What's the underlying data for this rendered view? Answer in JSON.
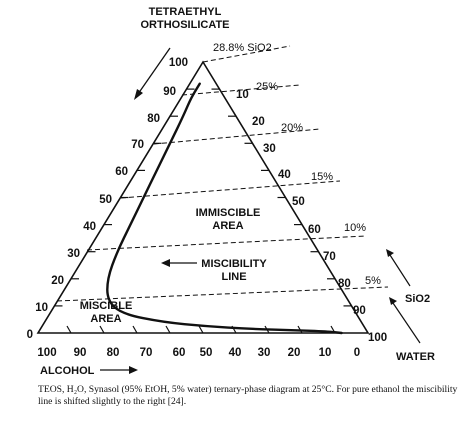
{
  "vertices": {
    "top": [
      "TETRAETHYL",
      "ORTHOSILICATE"
    ],
    "bottom_left": "ALCOHOL",
    "bottom_right": "WATER"
  },
  "axis_labels": {
    "left_edge": [
      "100",
      "90",
      "80",
      "70",
      "60",
      "50",
      "40",
      "30",
      "20",
      "10",
      "0"
    ],
    "right_edge": [
      "10",
      "20",
      "30",
      "40",
      "50",
      "60",
      "70",
      "80",
      "90",
      "100"
    ],
    "bottom_edge": [
      "100",
      "90",
      "80",
      "70",
      "60",
      "50",
      "40",
      "30",
      "20",
      "10",
      "0"
    ]
  },
  "sio2_lines": [
    "28.8% SiO2",
    "25%",
    "20%",
    "15%",
    "10%",
    "5%"
  ],
  "regions": {
    "immiscible": [
      "IMMISCIBLE",
      "AREA"
    ],
    "miscibility": [
      "MISCIBILITY",
      "LINE"
    ],
    "miscible": [
      "MISCIBLE",
      "AREA"
    ]
  },
  "sio2_arrow_label": "SiO2",
  "caption": "TEOS, H₂O, Synasol (95% EtOH, 5% water) ternary-phase diagram at 25°C. For pure ethanol the miscibility line is shifted slightly to the right [24].",
  "chart_data": {
    "type": "ternary",
    "components": [
      "Tetraethyl orthosilicate",
      "Alcohol",
      "Water"
    ],
    "temperature": "25°C",
    "sio2_wt_percent_lines": [
      28.8,
      25,
      20,
      15,
      10,
      5
    ],
    "miscibility_line": [
      {
        "teos": 92,
        "alcohol": 5,
        "water": 3
      },
      {
        "teos": 87,
        "alcohol": 10,
        "water": 3
      },
      {
        "teos": 80,
        "alcohol": 16,
        "water": 4
      },
      {
        "teos": 70,
        "alcohol": 25,
        "water": 5
      },
      {
        "teos": 60,
        "alcohol": 34,
        "water": 6
      },
      {
        "teos": 50,
        "alcohol": 43,
        "water": 7
      },
      {
        "teos": 40,
        "alcohol": 52,
        "water": 8
      },
      {
        "teos": 30,
        "alcohol": 61,
        "water": 9
      },
      {
        "teos": 20,
        "alcohol": 69,
        "water": 11
      },
      {
        "teos": 12,
        "alcohol": 73,
        "water": 15
      },
      {
        "teos": 7,
        "alcohol": 71,
        "water": 22
      },
      {
        "teos": 4,
        "alcohol": 60,
        "water": 36
      },
      {
        "teos": 2.5,
        "alcohol": 48,
        "water": 49.5
      },
      {
        "teos": 1.5,
        "alcohol": 35,
        "water": 63.5
      },
      {
        "teos": 1,
        "alcohol": 22,
        "water": 77
      },
      {
        "teos": 0.6,
        "alcohol": 12,
        "water": 87.4
      },
      {
        "teos": 0,
        "alcohol": 8,
        "water": 92
      }
    ]
  }
}
